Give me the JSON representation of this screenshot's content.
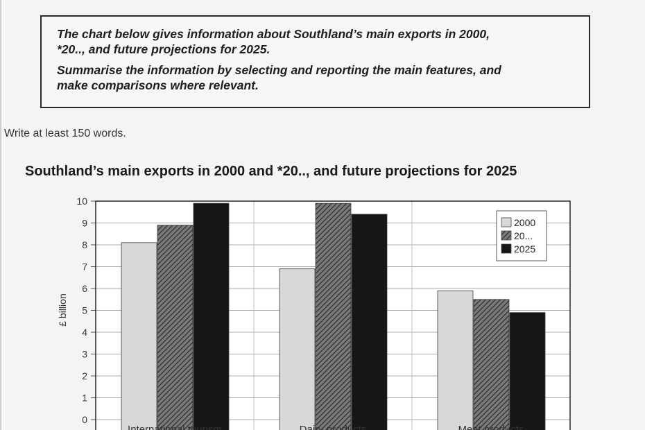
{
  "task": {
    "paragraph1": "The chart below gives information about Southland’s main exports in 2000,\n*20.., and future projections for 2025.",
    "paragraph2": "Summarise the information by selecting and reporting the main features, and\nmake comparisons where relevant."
  },
  "instruction": "Write at least 150 words.",
  "chart_data": {
    "type": "bar",
    "title": "Southland’s main exports in 2000 and *20..,  and future projections for 2025",
    "ylabel": "£ billion",
    "xlabel": "",
    "ylim": [
      0,
      10
    ],
    "yticks": [
      0,
      1,
      2,
      3,
      4,
      5,
      6,
      7,
      8,
      9,
      10
    ],
    "grid": true,
    "legend_position": "top-right",
    "categories": [
      "International tourism",
      "Dairy products",
      "Meat products"
    ],
    "series": [
      {
        "name": "2000",
        "values": [
          8.1,
          6.9,
          5.9
        ],
        "color": "#d8d8d8",
        "pattern": "solid"
      },
      {
        "name": "20...",
        "values": [
          8.9,
          9.9,
          5.5
        ],
        "color": "#6a6a6a",
        "pattern": "hatched"
      },
      {
        "name": "2025",
        "values": [
          9.9,
          9.4,
          4.9
        ],
        "color": "#161616",
        "pattern": "solid"
      }
    ]
  }
}
